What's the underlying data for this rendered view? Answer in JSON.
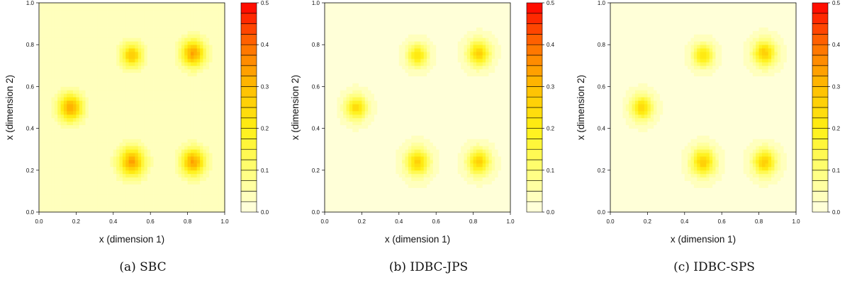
{
  "chart_data": [
    {
      "type": "heatmap",
      "caption": "(a) SBC",
      "xlabel": "x (dimension 1)",
      "ylabel": "x (dimension 2)",
      "xlim": [
        0,
        1
      ],
      "ylim": [
        0,
        1
      ],
      "xticks": [
        "0.0",
        "0.2",
        "0.4",
        "0.6",
        "0.8",
        "1.0"
      ],
      "yticks": [
        "0.0",
        "0.2",
        "0.4",
        "0.6",
        "0.8",
        "1.0"
      ],
      "colorbar": {
        "range": [
          0,
          0.5
        ],
        "levels": 20,
        "ticks": [
          "0.0",
          "0.1",
          "0.2",
          "0.3",
          "0.4",
          "0.5"
        ]
      },
      "peaks": [
        {
          "x": 0.17,
          "y": 0.5,
          "value": 0.3,
          "spread": 0.045
        },
        {
          "x": 0.5,
          "y": 0.75,
          "value": 0.25,
          "spread": 0.04
        },
        {
          "x": 0.83,
          "y": 0.76,
          "value": 0.3,
          "spread": 0.045
        },
        {
          "x": 0.5,
          "y": 0.24,
          "value": 0.3,
          "spread": 0.048
        },
        {
          "x": 0.83,
          "y": 0.24,
          "value": 0.3,
          "spread": 0.045
        }
      ],
      "background": 0.03
    },
    {
      "type": "heatmap",
      "caption": "(b) IDBC-JPS",
      "xlabel": "x (dimension 1)",
      "ylabel": "x (dimension 2)",
      "xlim": [
        0,
        1
      ],
      "ylim": [
        0,
        1
      ],
      "xticks": [
        "0.0",
        "0.2",
        "0.4",
        "0.6",
        "0.8",
        "1.0"
      ],
      "yticks": [
        "0.0",
        "0.2",
        "0.4",
        "0.6",
        "0.8",
        "1.0"
      ],
      "colorbar": {
        "range": [
          0,
          0.5
        ],
        "levels": 20,
        "ticks": [
          "0.0",
          "0.1",
          "0.2",
          "0.3",
          "0.4",
          "0.5"
        ]
      },
      "peaks": [
        {
          "x": 0.17,
          "y": 0.5,
          "value": 0.22,
          "spread": 0.04
        },
        {
          "x": 0.5,
          "y": 0.75,
          "value": 0.2,
          "spread": 0.038
        },
        {
          "x": 0.83,
          "y": 0.76,
          "value": 0.24,
          "spread": 0.042
        },
        {
          "x": 0.5,
          "y": 0.24,
          "value": 0.24,
          "spread": 0.044
        },
        {
          "x": 0.83,
          "y": 0.24,
          "value": 0.24,
          "spread": 0.042
        }
      ],
      "background": 0.02
    },
    {
      "type": "heatmap",
      "caption": "(c) IDBC-SPS",
      "xlabel": "x (dimension 1)",
      "ylabel": "x (dimension 2)",
      "xlim": [
        0,
        1
      ],
      "ylim": [
        0,
        1
      ],
      "xticks": [
        "0.0",
        "0.2",
        "0.4",
        "0.6",
        "0.8",
        "1.0"
      ],
      "yticks": [
        "0.0",
        "0.2",
        "0.4",
        "0.6",
        "0.8",
        "1.0"
      ],
      "colorbar": {
        "range": [
          0,
          0.5
        ],
        "levels": 20,
        "ticks": [
          "0.0",
          "0.1",
          "0.2",
          "0.3",
          "0.4",
          "0.5"
        ]
      },
      "peaks": [
        {
          "x": 0.17,
          "y": 0.5,
          "value": 0.23,
          "spread": 0.04
        },
        {
          "x": 0.5,
          "y": 0.75,
          "value": 0.21,
          "spread": 0.038
        },
        {
          "x": 0.83,
          "y": 0.76,
          "value": 0.25,
          "spread": 0.042
        },
        {
          "x": 0.5,
          "y": 0.24,
          "value": 0.25,
          "spread": 0.044
        },
        {
          "x": 0.83,
          "y": 0.24,
          "value": 0.25,
          "spread": 0.042
        }
      ],
      "background": 0.02
    }
  ]
}
